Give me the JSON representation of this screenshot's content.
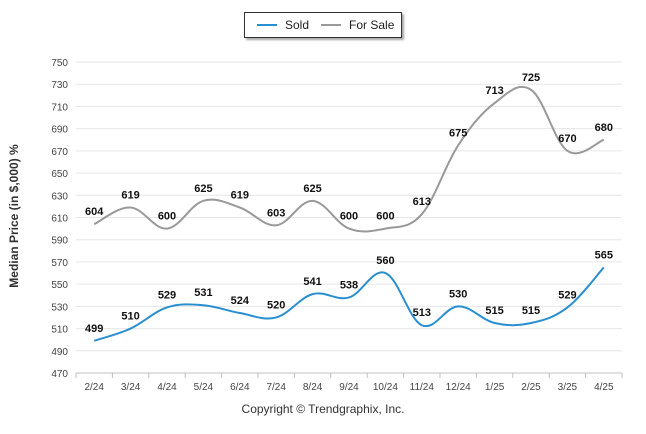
{
  "chart_data": {
    "type": "line",
    "categories": [
      "2/24",
      "3/24",
      "4/24",
      "5/24",
      "6/24",
      "7/24",
      "8/24",
      "9/24",
      "10/24",
      "11/24",
      "12/24",
      "1/25",
      "2/25",
      "3/25",
      "4/25"
    ],
    "series": [
      {
        "name": "Sold",
        "color": "#2a8fd0",
        "values": [
          499,
          510,
          529,
          531,
          524,
          520,
          541,
          538,
          560,
          513,
          530,
          515,
          515,
          529,
          565
        ]
      },
      {
        "name": "For Sale",
        "color": "#999999",
        "values": [
          604,
          619,
          600,
          625,
          619,
          603,
          625,
          600,
          600,
          613,
          675,
          713,
          725,
          670,
          680
        ]
      }
    ],
    "ylabel": "Median Price (in $,000) %",
    "xlabel": "",
    "ylim": [
      470,
      750
    ],
    "yticks": [
      470,
      490,
      510,
      530,
      550,
      570,
      590,
      610,
      630,
      650,
      670,
      690,
      710,
      730,
      750
    ],
    "grid": true,
    "legend_position": "top-center"
  },
  "copyright": "Copyright © Trendgraphix, Inc."
}
